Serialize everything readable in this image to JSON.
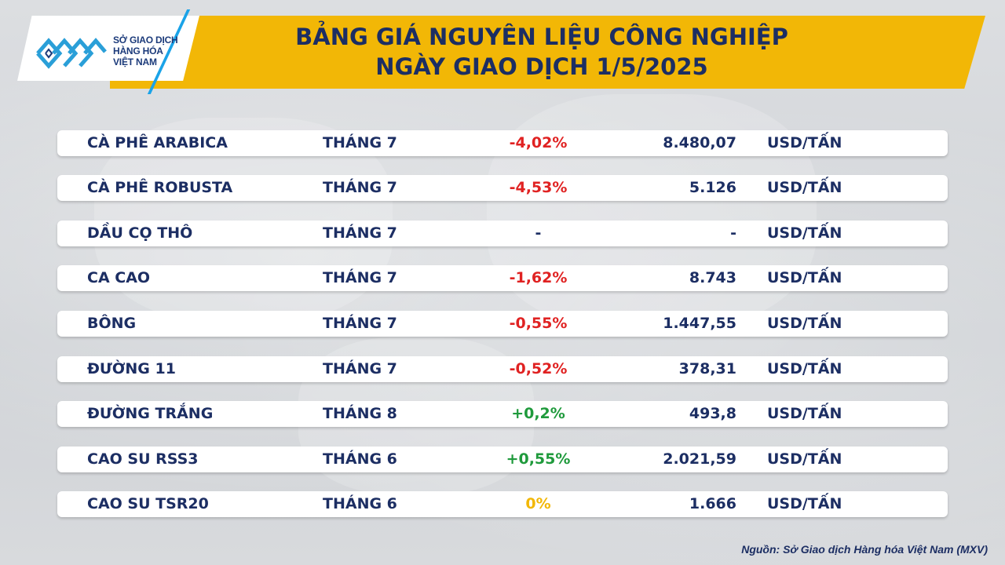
{
  "logo": {
    "lines": [
      "SỞ GIAO DỊCH",
      "HÀNG HÓA",
      "VIỆT NAM"
    ],
    "icon": "mxv-logo-icon"
  },
  "header": {
    "title_line1": "BẢNG GIÁ NGUYÊN LIỆU CÔNG NGHIỆP",
    "title_line2": "NGÀY GIAO DỊCH 1/5/2025"
  },
  "colors": {
    "header_band": "#f2b706",
    "title_text": "#1c2e63",
    "negative": "#e02222",
    "positive": "#1f9a3c",
    "unchanged": "#f2b706"
  },
  "rows": [
    {
      "name": "CÀ PHÊ ARABICA",
      "month": "THÁNG 7",
      "change": "-4,02%",
      "status": "neg",
      "price": "8.480,07",
      "unit": "USD/TẤN"
    },
    {
      "name": "CÀ PHÊ ROBUSTA",
      "month": "THÁNG 7",
      "change": "-4,53%",
      "status": "neg",
      "price": "5.126",
      "unit": "USD/TẤN"
    },
    {
      "name": "DẦU CỌ THÔ",
      "month": "THÁNG 7",
      "change": "-",
      "status": "flat",
      "price": "-",
      "unit": "USD/TẤN"
    },
    {
      "name": "CA CAO",
      "month": "THÁNG 7",
      "change": "-1,62%",
      "status": "neg",
      "price": "8.743",
      "unit": "USD/TẤN"
    },
    {
      "name": "BÔNG",
      "month": "THÁNG 7",
      "change": "-0,55%",
      "status": "neg",
      "price": "1.447,55",
      "unit": "USD/TẤN"
    },
    {
      "name": "ĐƯỜNG 11",
      "month": "THÁNG 7",
      "change": "-0,52%",
      "status": "neg",
      "price": "378,31",
      "unit": "USD/TẤN"
    },
    {
      "name": "ĐƯỜNG TRẮNG",
      "month": "THÁNG 8",
      "change": "+0,2%",
      "status": "pos",
      "price": "493,8",
      "unit": "USD/TẤN"
    },
    {
      "name": "CAO SU RSS3",
      "month": "THÁNG 6",
      "change": "+0,55%",
      "status": "pos",
      "price": "2.021,59",
      "unit": "USD/TẤN"
    },
    {
      "name": "CAO SU TSR20",
      "month": "THÁNG 6",
      "change": "0%",
      "status": "zero",
      "price": "1.666",
      "unit": "USD/TẤN"
    }
  ],
  "footer": {
    "source": "Nguồn: Sở Giao dịch Hàng hóa Việt Nam (MXV)"
  }
}
